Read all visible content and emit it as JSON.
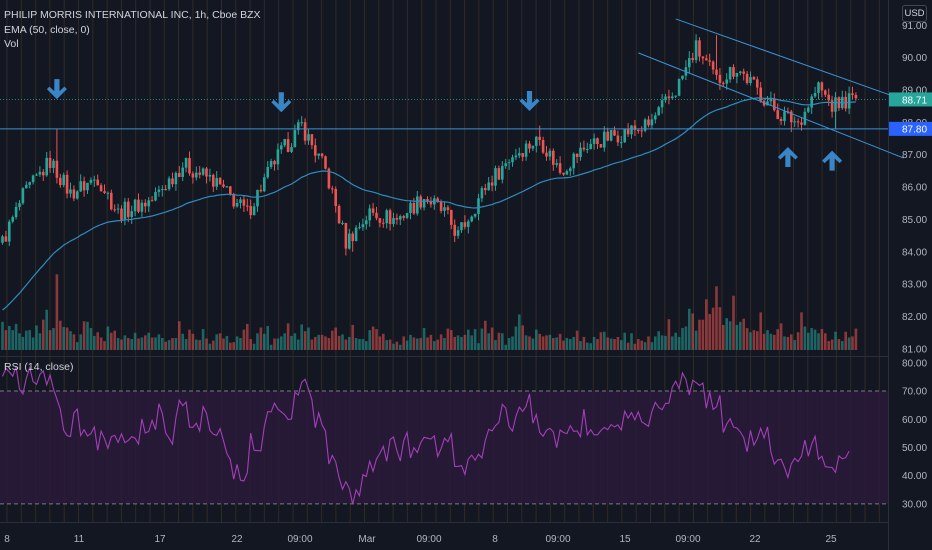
{
  "header": {
    "title": "PHILIP MORRIS INTERNATIONAL INC, 1h, Cboe BZX",
    "ema_label": "EMA (50, close, 0)",
    "vol_label": "Vol",
    "rsi_label": "RSI (14, close)",
    "currency": "USD"
  },
  "colors": {
    "background": "#131722",
    "grid_vertical": "#4a3a22",
    "up": "#26a69a",
    "down": "#ef5350",
    "ema": "#2e8bc0",
    "rsi_line": "#a33fb8",
    "rsi_band": "#2a1a3a",
    "trendline": "#3a93d6",
    "arrow": "#3a85c6",
    "price_badge": "#26a69a",
    "level_badge": "#2962ff"
  },
  "chart_data": [
    {
      "type": "candlestick",
      "title": "PHILIP MORRIS INTERNATIONAL INC, 1h, Cboe BZX",
      "ylim": [
        80.9,
        91.6
      ],
      "y_ticks": [
        81.0,
        82.0,
        83.0,
        84.0,
        85.0,
        86.0,
        87.0,
        88.0,
        89.0,
        90.0,
        91.0
      ],
      "y_tick_labels": [
        "81.00",
        "82.00",
        "83.00",
        "84.00",
        "85.00",
        "86.00",
        "87.00",
        "88.00",
        "89.00",
        "90.00",
        "91.00"
      ],
      "x_tick_labels": [
        "8",
        "11",
        "17",
        "22",
        "09:00",
        "Mar",
        "09:00",
        "8",
        "09:00",
        "15",
        "09:00",
        "22",
        "25"
      ],
      "last_price": 88.71,
      "last_price_label": "88.71",
      "horizontal_level": 87.8,
      "horizontal_level_label": "87.80",
      "anchors": [
        {
          "bar": 0,
          "close": 84.3
        },
        {
          "bar": 6,
          "close": 85.7
        },
        {
          "bar": 14,
          "close": 86.8
        },
        {
          "bar": 20,
          "close": 85.8
        },
        {
          "bar": 28,
          "close": 86.3
        },
        {
          "bar": 34,
          "close": 85.2
        },
        {
          "bar": 44,
          "close": 85.6
        },
        {
          "bar": 53,
          "close": 86.7
        },
        {
          "bar": 62,
          "close": 86.2
        },
        {
          "bar": 72,
          "close": 85.2
        },
        {
          "bar": 80,
          "close": 86.8
        },
        {
          "bar": 88,
          "close": 87.9
        },
        {
          "bar": 95,
          "close": 86.5
        },
        {
          "bar": 101,
          "close": 84.3
        },
        {
          "bar": 108,
          "close": 85.2
        },
        {
          "bar": 116,
          "close": 85.0
        },
        {
          "bar": 124,
          "close": 85.7
        },
        {
          "bar": 130,
          "close": 85.2
        },
        {
          "bar": 134,
          "close": 84.5
        },
        {
          "bar": 142,
          "close": 86.0
        },
        {
          "bar": 150,
          "close": 87.0
        },
        {
          "bar": 158,
          "close": 87.5
        },
        {
          "bar": 164,
          "close": 86.5
        },
        {
          "bar": 172,
          "close": 87.3
        },
        {
          "bar": 180,
          "close": 87.6
        },
        {
          "bar": 190,
          "close": 87.9
        },
        {
          "bar": 198,
          "close": 89.0
        },
        {
          "bar": 204,
          "close": 90.3
        },
        {
          "bar": 210,
          "close": 89.3
        },
        {
          "bar": 216,
          "close": 89.7
        },
        {
          "bar": 222,
          "close": 89.0
        },
        {
          "bar": 228,
          "close": 88.3
        },
        {
          "bar": 234,
          "close": 88.0
        },
        {
          "bar": 240,
          "close": 89.1
        },
        {
          "bar": 244,
          "close": 88.5
        },
        {
          "bar": 249,
          "close": 88.71
        }
      ],
      "events": [
        {
          "bar": 16,
          "high": 87.8
        },
        {
          "bar": 88,
          "high": 88.2
        },
        {
          "bar": 103,
          "low": 84.0
        },
        {
          "bar": 133,
          "low": 84.3
        },
        {
          "bar": 158,
          "high": 87.9
        },
        {
          "bar": 210,
          "high": 90.7
        },
        {
          "bar": 232,
          "low": 87.7
        },
        {
          "bar": 245,
          "low": 87.8
        }
      ],
      "volume_ylim": [
        0,
        15.7
      ],
      "volume_values": [
        5.4,
        3.8,
        4.6,
        3.8,
        5.0,
        3.2,
        2.5,
        3.7,
        3.8,
        2.4,
        4.7,
        3.2,
        5.8,
        7.7,
        3.8,
        4.2,
        14.5,
        5.6,
        4.4,
        4.3,
        3.6,
        3.0,
        1.5,
        3.0,
        5.5,
        5.4,
        4.2,
        2.7,
        3.4,
        2.4,
        1.7,
        4.5,
        3.3,
        3.7,
        2.3,
        2.0,
        2.8,
        2.3,
        2.1,
        3.3,
        2.2,
        2.4,
        2.8,
        3.3,
        2.4,
        2.4,
        3.0,
        2.3,
        1.6,
        1.9,
        2.3,
        2.3,
        5.5,
        3.1,
        2.1,
        3.9,
        3.1,
        2.0,
        1.9,
        4.0,
        2.2,
        1.2,
        1.8,
        3.0,
        3.2,
        2.2,
        2.7,
        1.4,
        1.5,
        2.6,
        2.3,
        3.9,
        5.0,
        2.1,
        1.2,
        3.2,
        4.3,
        3.1,
        4.6,
        1.0,
        2.2,
        2.2,
        2.6,
        3.2,
        5.1,
        2.7,
        3.2,
        2.0,
        4.9,
        3.6,
        4.3,
        2.0,
        2.5,
        2.9,
        2.9,
        2.6,
        2.3,
        3.7,
        4.3,
        2.7,
        3.0,
        2.0,
        2.5,
        4.8,
        2.3,
        2.1,
        2.1,
        1.7,
        3.8,
        4.5,
        4.0,
        2.6,
        3.1,
        1.9,
        2.0,
        1.2,
        1.6,
        1.0,
        2.6,
        1.8,
        2.9,
        2.4,
        2.2,
        2.3,
        4.2,
        2.4,
        2.9,
        1.7,
        2.0,
        3.0,
        2.3,
        4.1,
        3.8,
        2.5,
        2.8,
        2.5,
        2.9,
        3.9,
        2.8,
        4.0,
        1.3,
        4.1,
        5.6,
        3.2,
        4.3,
        1.9,
        3.3,
        3.2,
        1.0,
        2.3,
        2.6,
        4.5,
        6.8,
        4.7,
        2.8,
        2.6,
        2.2,
        3.9,
        3.1,
        2.6,
        2.8,
        2.9,
        2.3,
        2.4,
        3.1,
        1.8,
        2.3,
        2.1,
        2.5,
        3.7,
        1.7,
        2.5,
        1.4,
        1.3,
        2.5,
        2.1,
        3.4,
        3.5,
        2.4,
        2.2,
        2.1,
        2.5,
        1.9,
        3.3,
        1.4,
        3.2,
        1.2,
        2.1,
        1.8,
        1.5,
        2.6,
        1.5,
        2.6,
        3.6,
        2.8,
        2.7,
        5.9,
        2.6,
        3.3,
        2.5,
        4.2,
        4.5,
        7.9,
        7.0,
        3.7,
        5.8,
        5.8,
        9.7,
        6.9,
        8.1,
        12.2,
        8.2,
        4.8,
        6.1,
        5.5,
        10.4,
        4.8,
        5.4,
        6.0,
        4.2,
        3.4,
        3.8,
        3.6,
        7.2,
        3.1,
        3.8,
        3.1,
        2.9,
        4.0,
        5.1,
        2.6,
        2.5,
        3.0,
        1.9,
        3.4,
        7.2,
        4.5,
        3.3,
        4.2,
        3.9,
        3.2,
        4.0,
        3.2,
        1.7,
        2.0,
        3.5,
        2.1,
        1.7,
        3.5,
        2.4,
        2.6,
        4.1
      ],
      "ema_period": 50,
      "drawings": {
        "horizontal_line_price": 87.8,
        "channel_upper": [
          {
            "bar": 198,
            "price": 91.2
          },
          {
            "bar": 265,
            "price": 88.7
          }
        ],
        "channel_lower": [
          {
            "bar": 187,
            "price": 90.15
          },
          {
            "bar": 265,
            "price": 86.9
          }
        ],
        "arrows_down": [
          {
            "bar": 16
          },
          {
            "bar": 82
          },
          {
            "bar": 155
          }
        ],
        "arrows_up": [
          {
            "bar": 231
          },
          {
            "bar": 244
          }
        ]
      }
    },
    {
      "type": "line",
      "title": "RSI (14, close)",
      "ylim": [
        25,
        81
      ],
      "y_ticks": [
        30,
        40,
        50,
        60,
        70,
        80
      ],
      "y_tick_labels": [
        "30.00",
        "40.00",
        "50.00",
        "60.00",
        "70.00",
        "80.00"
      ],
      "band": [
        30,
        70
      ],
      "series": [
        {
          "values": [
            75.2,
            78.0,
            76.8,
            75.3,
            78.6,
            70.6,
            69.0,
            74.5,
            78.2,
            73.3,
            72.4,
            75.9,
            77.2,
            72.2,
            75.7,
            70.7,
            67.1,
            63.6,
            56.1,
            54.2,
            53.9,
            62.3,
            63.6,
            54.2,
            56.3,
            54.1,
            54.9,
            57.3,
            49.0,
            55.8,
            53.1,
            49.7,
            53.8,
            54.3,
            51.8,
            54.8,
            51.7,
            52.5,
            53.8,
            53.3,
            51.2,
            60.1,
            55.1,
            55.7,
            59.6,
            56.3,
            65.5,
            62.1,
            55.1,
            53.3,
            51.2,
            60.5,
            66.7,
            64.8,
            66.1,
            57.2,
            57.1,
            58.6,
            55.8,
            64.5,
            62.1,
            56.0,
            54.7,
            54.3,
            56.7,
            52.4,
            47.8,
            45.7,
            38.8,
            44.0,
            38.4,
            38.1,
            41.0,
            55.1,
            49.0,
            48.9,
            48.8,
            57.4,
            62.7,
            62.6,
            65.7,
            63.6,
            62.6,
            61.6,
            59.9,
            60.1,
            69.5,
            68.6,
            73.1,
            74.2,
            70.7,
            66.9,
            57.0,
            62.2,
            58.0,
            55.8,
            44.1,
            47.2,
            44.9,
            39.3,
            35.2,
            37.9,
            35.5,
            29.9,
            35.0,
            32.9,
            40.4,
            39.7,
            45.1,
            41.5,
            45.9,
            47.9,
            50.4,
            45.1,
            52.8,
            53.7,
            48.9,
            45.2,
            52.4,
            55.3,
            46.3,
            49.9,
            48.2,
            51.7,
            53.6,
            53.3,
            53.0,
            54.1,
            46.8,
            49.6,
            53.3,
            52.0,
            54.8,
            43.3,
            43.3,
            43.6,
            40.5,
            45.9,
            47.3,
            45.5,
            47.6,
            46.3,
            52.5,
            56.4,
            55.9,
            57.7,
            58.9,
            65.3,
            64.0,
            57.4,
            55.8,
            61.0,
            64.3,
            62.8,
            64.6,
            69.0,
            58.6,
            61.7,
            55.3,
            54.0,
            56.1,
            56.8,
            55.5,
            49.9,
            56.2,
            55.3,
            54.9,
            57.7,
            55.7,
            55.9,
            53.8,
            63.6,
            54.5,
            56.3,
            54.5,
            54.5,
            56.0,
            57.1,
            56.3,
            58.1,
            57.3,
            58.0,
            56.2,
            62.9,
            60.4,
            62.4,
            59.8,
            62.6,
            59.1,
            58.3,
            57.5,
            62.8,
            66.0,
            64.2,
            63.4,
            65.6,
            65.7,
            71.4,
            73.5,
            70.8,
            76.4,
            74.1,
            68.6,
            73.8,
            73.0,
            72.0,
            72.8,
            63.9,
            69.7,
            63.5,
            64.4,
            68.5,
            55.3,
            58.3,
            60.2,
            57.2,
            56.9,
            55.5,
            53.5,
            48.5,
            56.0,
            50.8,
            53.1,
            56.8,
            53.4,
            57.3,
            48.4,
            44.1,
            45.6,
            45.8,
            42.9,
            39.4,
            44.2,
            46.2,
            45.0,
            46.9,
            52.6,
            46.9,
            51.2,
            54.0,
            45.8,
            46.9,
            43.2,
            43.0,
            42.9,
            41.2,
            47.0,
            46.0,
            46.4,
            48.7
          ]
        }
      ]
    }
  ]
}
